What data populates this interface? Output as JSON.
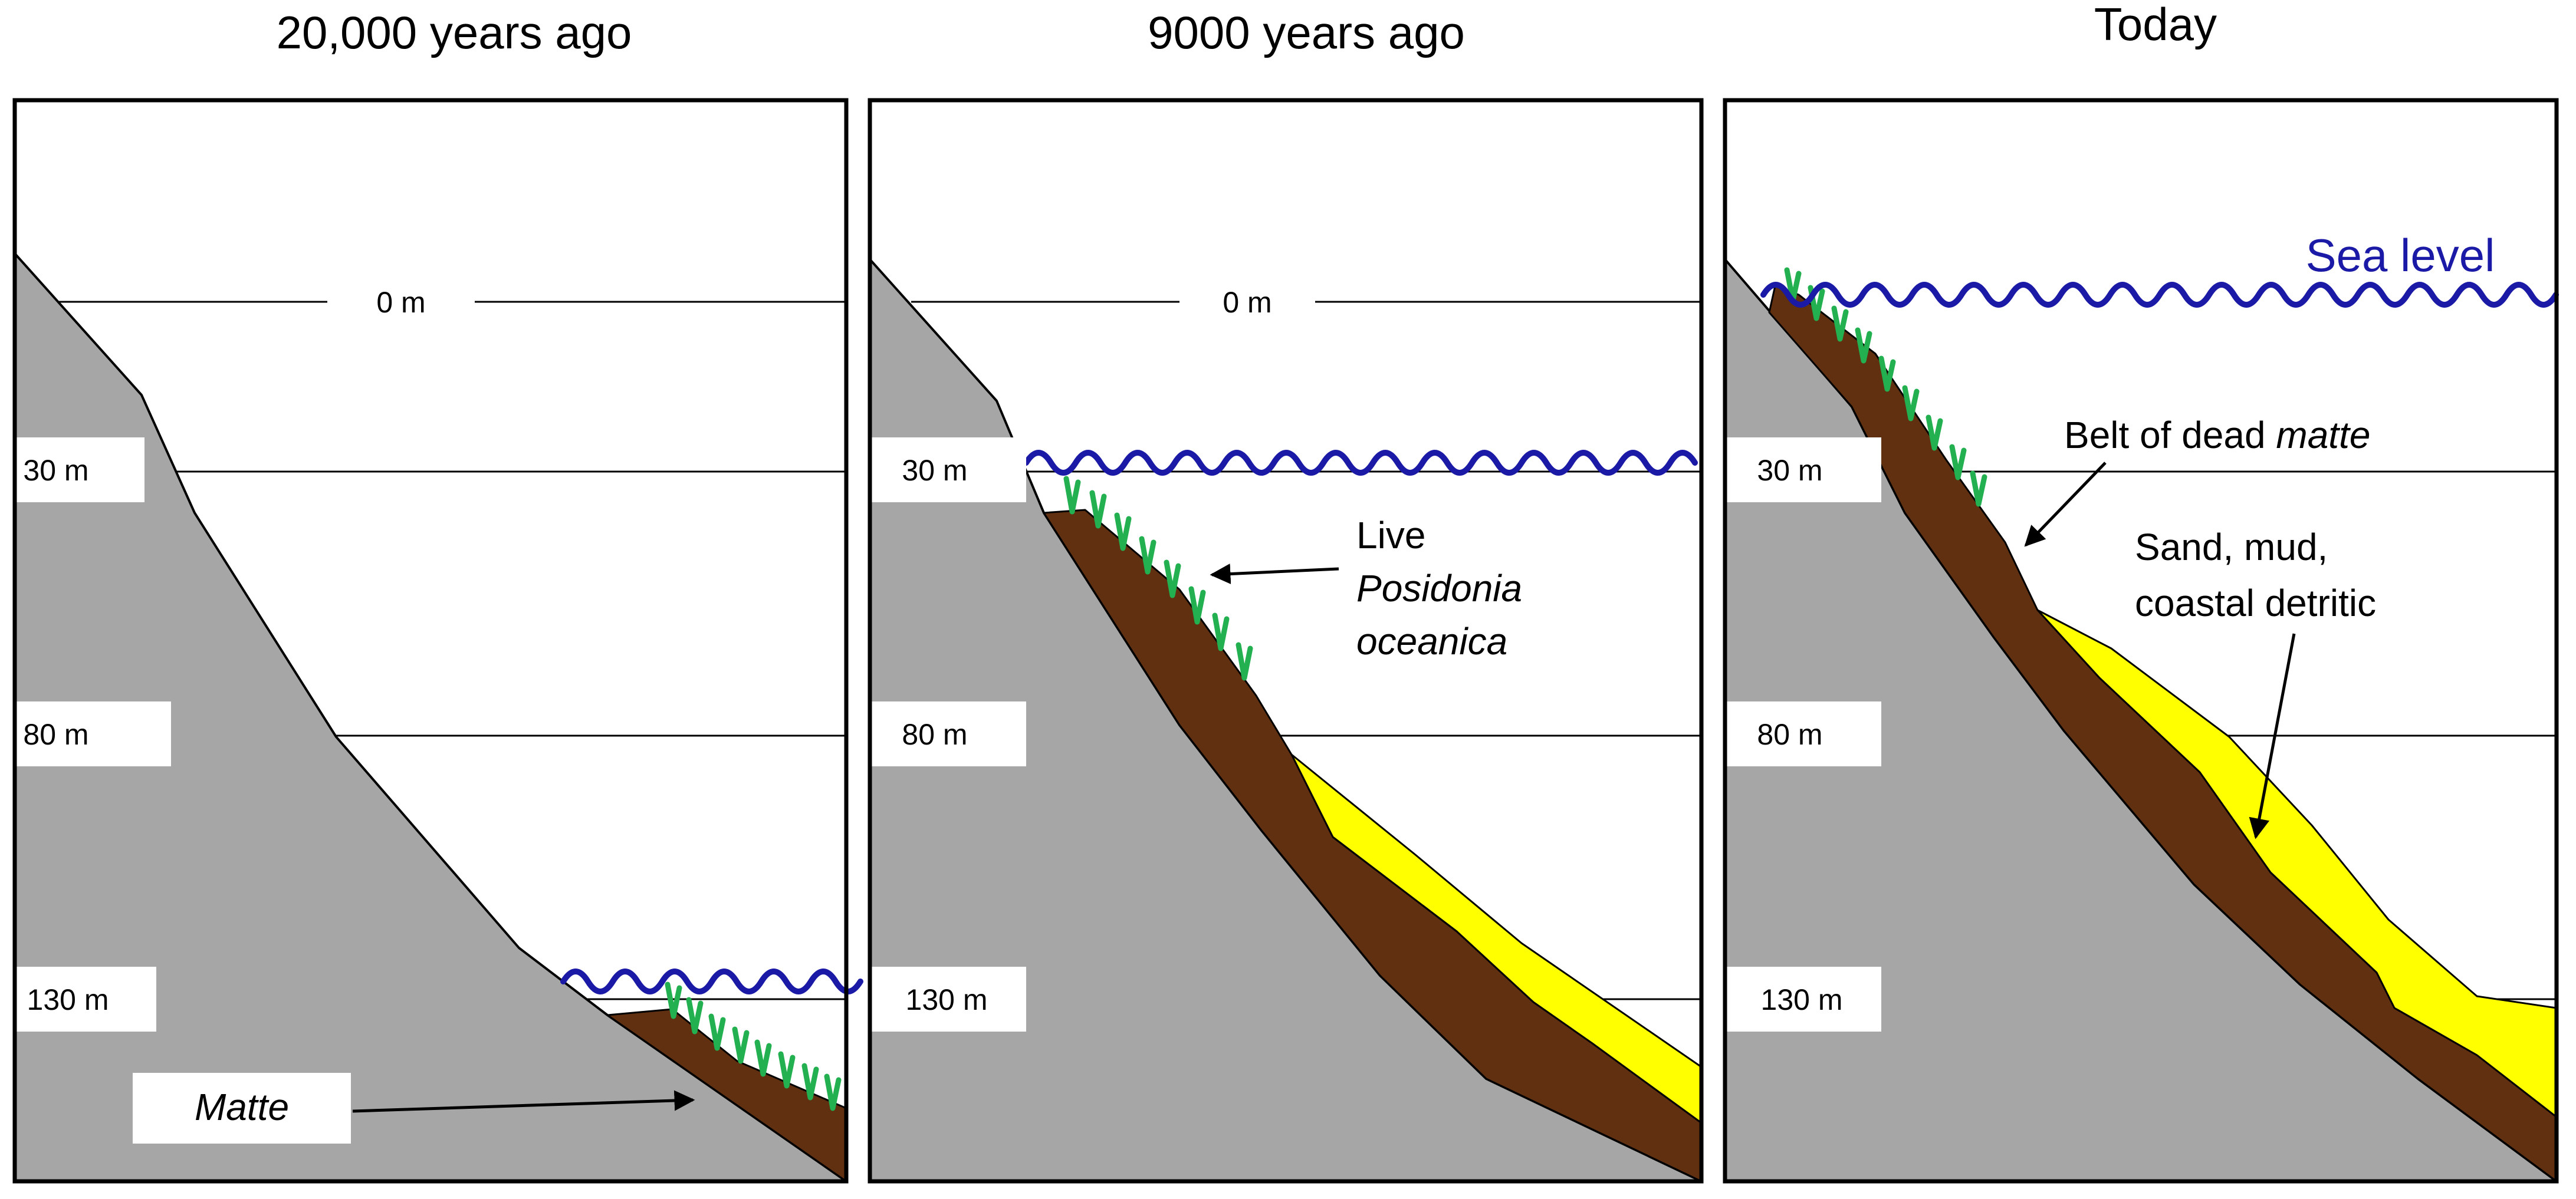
{
  "colors": {
    "rock": "#a6a6a6",
    "matte": "#603010",
    "sediment": "#ffff00",
    "seagrass": "#22b050",
    "sea_level": "#1a1aa6",
    "frame": "#000000",
    "background": "#ffffff"
  },
  "depth_marks": {
    "m0": "0 m",
    "m30": "30 m",
    "m80": "80 m",
    "m130": "130 m"
  },
  "panels": [
    {
      "title": "20,000 years ago",
      "annotations": {
        "matte": "Matte"
      }
    },
    {
      "title": "9000 years ago",
      "annotations": {
        "live_line1": "Live",
        "live_line2": "Posidonia",
        "live_line3": "oceanica"
      }
    },
    {
      "title": "Today",
      "annotations": {
        "sea_level": "Sea level",
        "dead_matte_prefix": "Belt of dead ",
        "dead_matte_italic": "matte",
        "sand_line1": "Sand, mud,",
        "sand_line2": "coastal detritic"
      }
    }
  ]
}
